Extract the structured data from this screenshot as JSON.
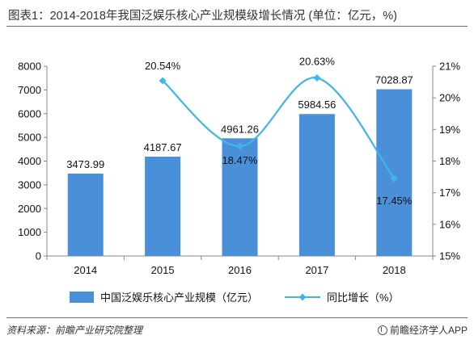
{
  "title": "图表1：2014-2018年我国泛娱乐核心产业规模级增长情况 (单位：亿元，%)",
  "source": "资料来源：前瞻产业研究院整理",
  "brand": "前瞻经济学人APP",
  "colors": {
    "bar": "#4a90d9",
    "line": "#3fb6ea",
    "axis": "#888888",
    "grid": "#eeeeee"
  },
  "chart_data": {
    "type": "bar+line",
    "categories": [
      "2014",
      "2015",
      "2016",
      "2017",
      "2018"
    ],
    "series": [
      {
        "name": "中国泛娱乐核心产业规模（亿元）",
        "type": "bar",
        "axis": "left",
        "values": [
          3473.99,
          4187.67,
          4961.26,
          5984.56,
          7028.87
        ],
        "labels": [
          "3473.99",
          "4187.67",
          "4961.26",
          "5984.56",
          "7028.87"
        ]
      },
      {
        "name": "同比增长（%）",
        "type": "line",
        "axis": "right",
        "values": [
          null,
          20.54,
          18.47,
          20.63,
          17.45
        ],
        "labels": [
          "",
          "20.54%",
          "18.47%",
          "20.63%",
          "17.45%"
        ]
      }
    ],
    "y_left": {
      "ylim": [
        0,
        8000
      ],
      "ticks": [
        0,
        1000,
        2000,
        3000,
        4000,
        5000,
        6000,
        7000,
        8000
      ],
      "tick_labels": [
        "0",
        "1000",
        "2000",
        "3000",
        "4000",
        "5000",
        "6000",
        "7000",
        "8000"
      ]
    },
    "y_right": {
      "ylim": [
        15,
        21
      ],
      "ticks": [
        15,
        16,
        17,
        18,
        19,
        20,
        21
      ],
      "tick_labels": [
        "15%",
        "16%",
        "17%",
        "18%",
        "19%",
        "20%",
        "21%"
      ]
    },
    "legend_position": "bottom",
    "grid": false
  }
}
